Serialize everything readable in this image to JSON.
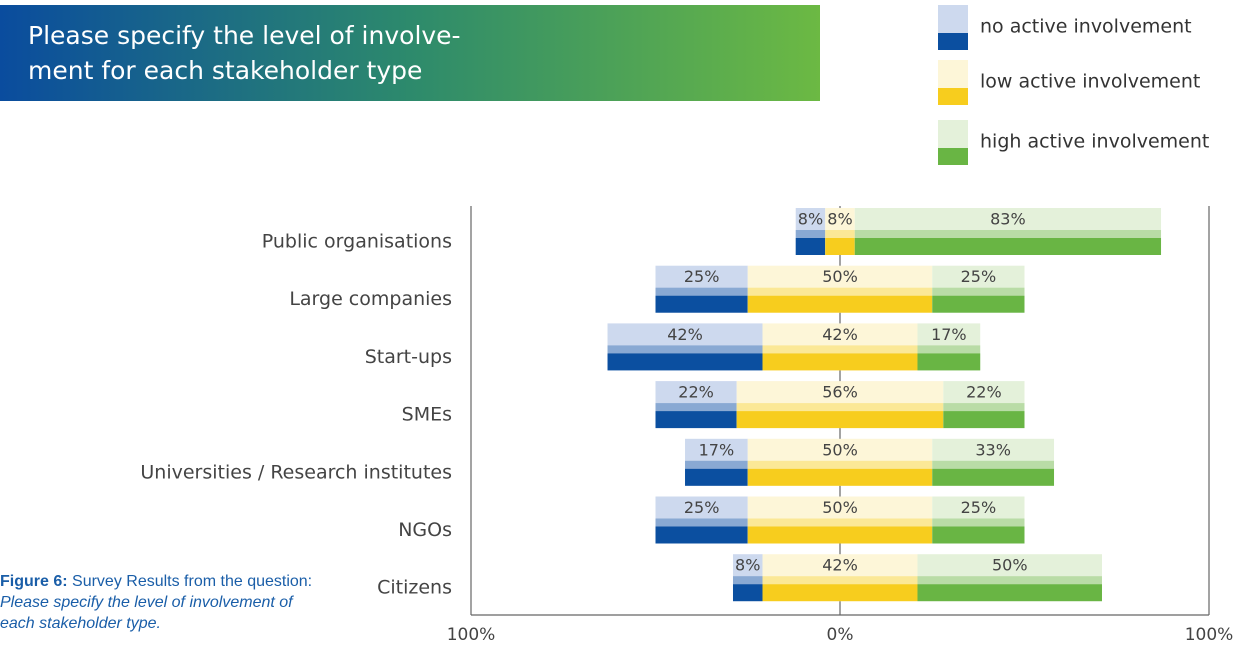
{
  "chart_data": {
    "type": "diverging_bar",
    "title": [
      "Please specify the level of involve-",
      "ment for each stakeholder type"
    ],
    "categories": [
      "Public organisations",
      "Large companies",
      "Start-ups",
      "SMEs",
      "Universities / Research institutes",
      "NGOs",
      "Citizens"
    ],
    "series": [
      {
        "name": "no active involvement",
        "color": "#0b4fa0",
        "light_color": "#cdd9ee",
        "values": [
          8,
          25,
          42,
          22,
          17,
          25,
          8
        ],
        "value_labels": [
          "8%",
          "25%",
          "42%",
          "22%",
          "17%",
          "25%",
          "8%"
        ]
      },
      {
        "name": "low active involvement",
        "color": "#f7cd1e",
        "light_color": "#fdf6d8",
        "values": [
          8,
          50,
          42,
          56,
          50,
          50,
          42
        ],
        "value_labels": [
          "8%",
          "50%",
          "42%",
          "56%",
          "50%",
          "50%",
          "42%"
        ]
      },
      {
        "name": "high active involvement",
        "color": "#69b544",
        "light_color": "#e4f1da",
        "values": [
          83,
          25,
          17,
          22,
          33,
          25,
          50
        ],
        "value_labels": [
          "83%",
          "25%",
          "17%",
          "22%",
          "33%",
          "25%",
          "50%"
        ]
      }
    ],
    "xlim": [
      -100,
      100
    ],
    "xticks": [
      {
        "value": -100,
        "label": "100%"
      },
      {
        "value": 0,
        "label": "0%"
      },
      {
        "value": 100,
        "label": "100%"
      }
    ],
    "caption": {
      "label": "Figure 6:",
      "text": "Survey Results from the question:",
      "question": "Please specify the level of involvement of each stakeholder type."
    }
  }
}
